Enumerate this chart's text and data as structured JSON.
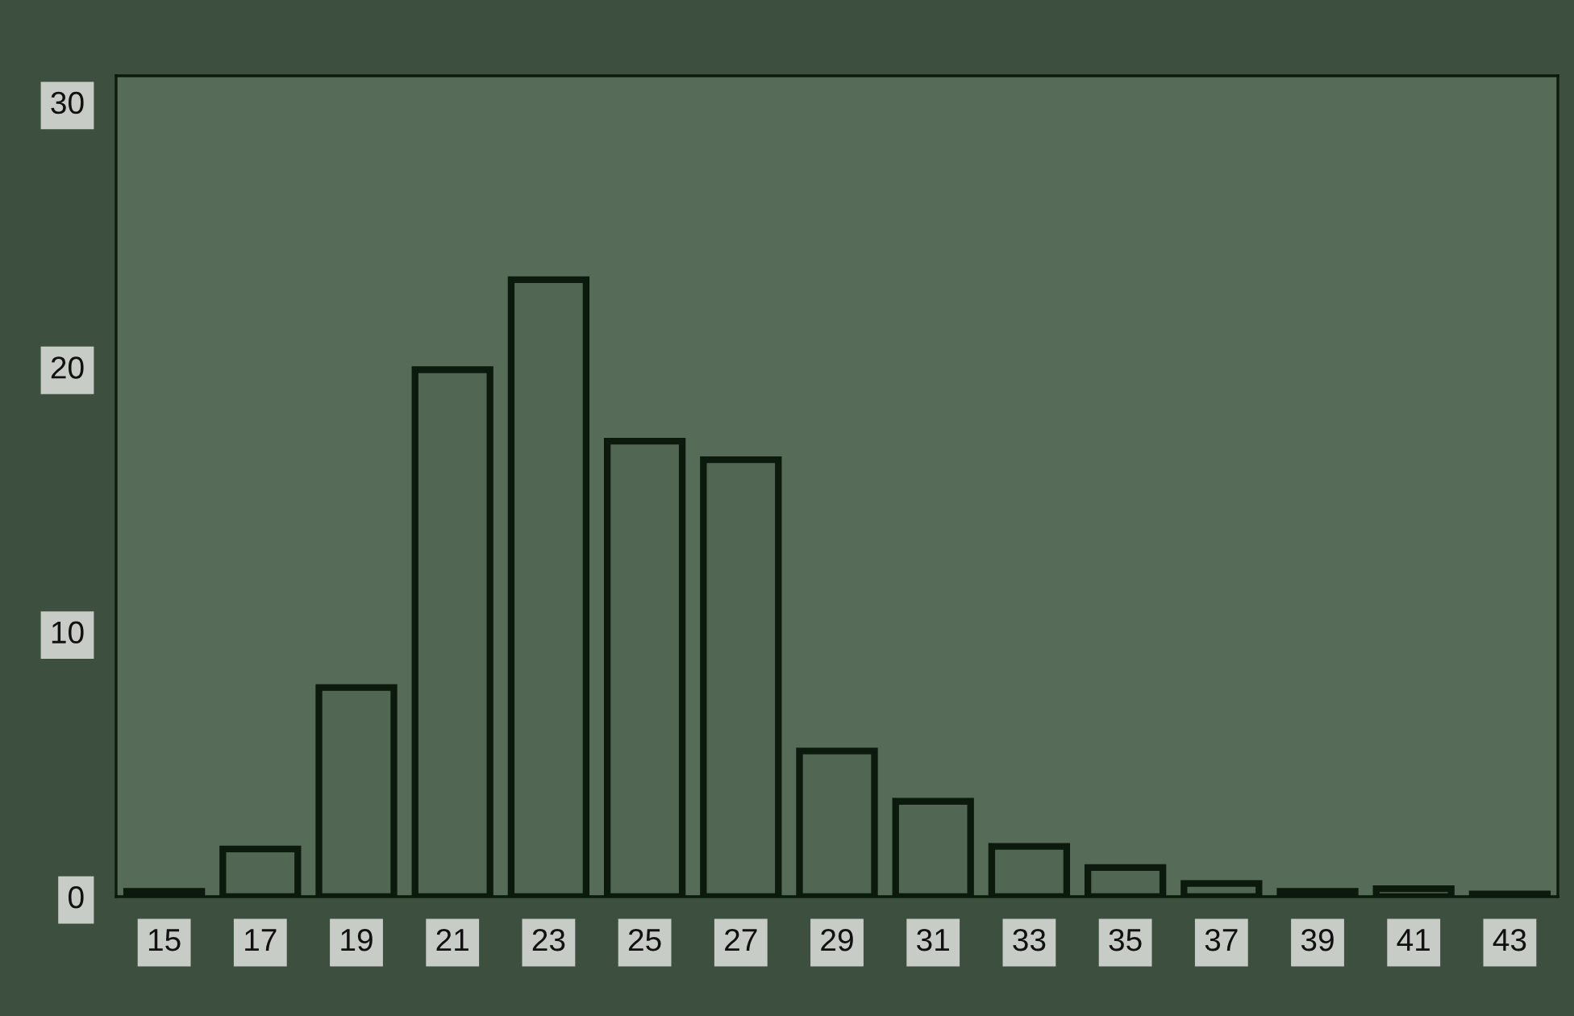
{
  "chart_data": {
    "type": "bar",
    "categories": [
      "15",
      "17",
      "19",
      "21",
      "23",
      "25",
      "27",
      "29",
      "31",
      "33",
      "35",
      "37",
      "39",
      "41",
      "43"
    ],
    "values": [
      0.2,
      1.8,
      7.9,
      19.9,
      23.3,
      17.2,
      16.5,
      5.5,
      3.6,
      1.9,
      1.1,
      0.5,
      0.2,
      0.3,
      0.1
    ],
    "color": "#526654",
    "ylim": [
      0,
      31
    ],
    "yticks": [
      0,
      10,
      20,
      30
    ],
    "grid": false,
    "legend": false
  }
}
